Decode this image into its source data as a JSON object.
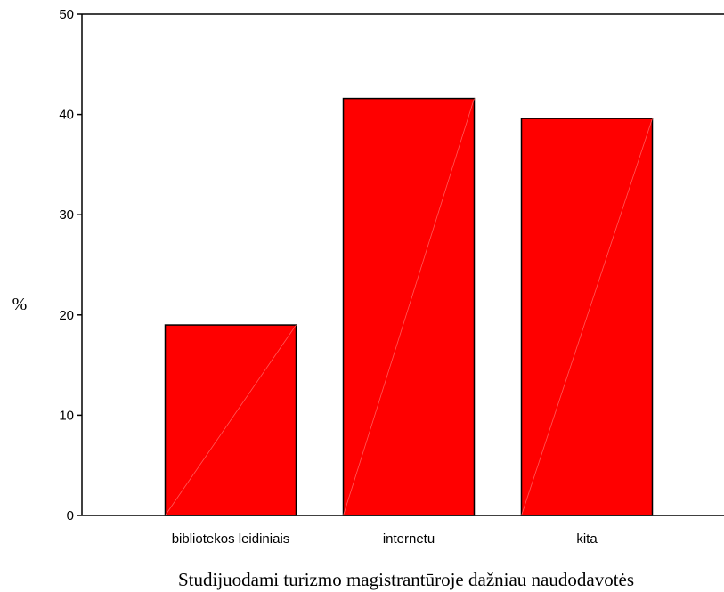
{
  "chart_data": {
    "type": "bar",
    "categories": [
      "bibliotekos leidiniais",
      "internetu",
      "kita"
    ],
    "values": [
      19,
      41.6,
      39.6
    ],
    "ylabel": "%",
    "xlabel": "Studijuodami turizmo magistrantūroje dažniau naudodavotės",
    "ylim": [
      0,
      50
    ],
    "yticks": [
      0,
      10,
      20,
      30,
      40,
      50
    ],
    "grid": false,
    "bar_color": "#ff0000",
    "bar_stroke": "#000000"
  }
}
